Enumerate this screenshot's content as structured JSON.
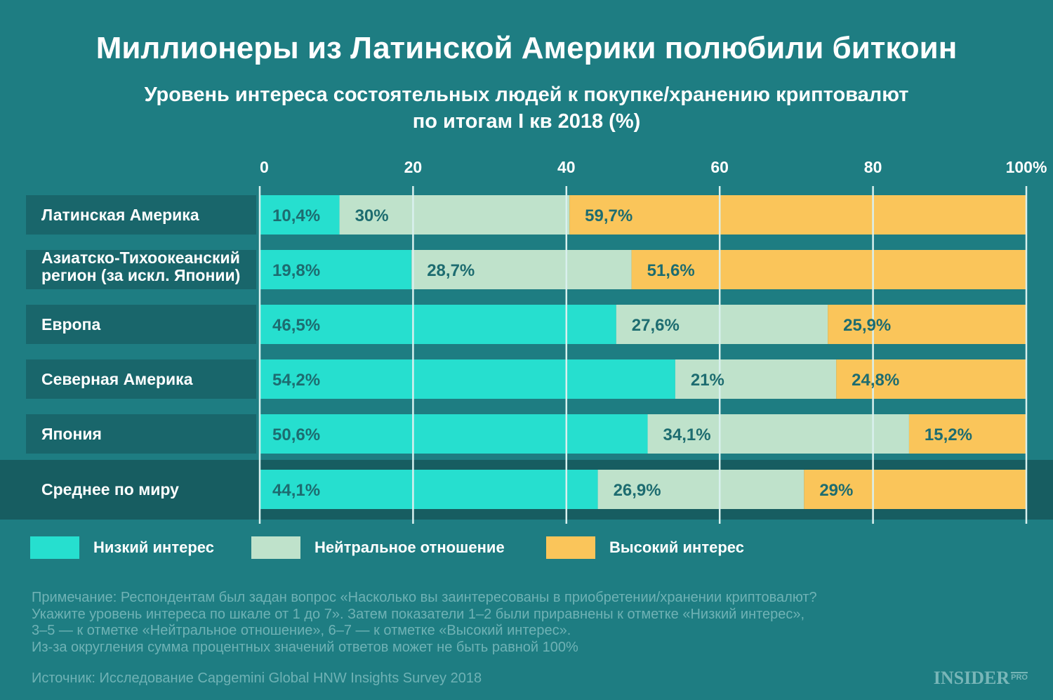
{
  "header": {
    "title": "Миллионеры из Латинской Америки полюбили биткоин",
    "subtitle_line1": "Уровень интереса состоятельных людей к покупке/хранению криптовалют",
    "subtitle_line2": "по итогам I кв 2018 (%)"
  },
  "chart_data": {
    "type": "bar",
    "orientation": "horizontal",
    "stacked": true,
    "title": "Миллионеры из Латинской Америки полюбили биткоин",
    "subtitle": "Уровень интереса состоятельных людей к покупке/хранению криптовалют по итогам I кв 2018 (%)",
    "x_ticks": [
      "0",
      "20",
      "40",
      "60",
      "80",
      "100%"
    ],
    "x_tick_values": [
      0,
      20,
      40,
      60,
      80,
      100
    ],
    "xlim": [
      0,
      100
    ],
    "grid": true,
    "legend_position": "bottom",
    "categories": [
      [
        "Латинская Америка"
      ],
      [
        "Азиатско-Тихоокеанский",
        "регион (за искл. Японии)"
      ],
      [
        "Европа"
      ],
      [
        "Северная Америка"
      ],
      [
        "Япония"
      ],
      [
        "Среднее по миру"
      ]
    ],
    "highlight_category_index": 5,
    "series": [
      {
        "name": "Низкий интерес",
        "color": "#26dfcf",
        "values": [
          10.4,
          19.8,
          46.5,
          54.2,
          50.6,
          44.1
        ],
        "labels": [
          "10,4%",
          "19,8%",
          "46,5%",
          "54,2%",
          "50,6%",
          "44,1%"
        ]
      },
      {
        "name": "Нейтральное отношение",
        "color": "#bfe2cb",
        "values": [
          30,
          28.7,
          27.6,
          21,
          34.1,
          26.9
        ],
        "labels": [
          "30%",
          "28,7%",
          "27,6%",
          "21%",
          "34,1%",
          "26,9%"
        ]
      },
      {
        "name": "Высокий интерес",
        "color": "#fac55a",
        "values": [
          59.7,
          51.6,
          25.9,
          24.8,
          15.2,
          29
        ],
        "labels": [
          "59,7%",
          "51,6%",
          "25,9%",
          "24,8%",
          "15,2%",
          "29%"
        ]
      }
    ]
  },
  "legend": {
    "items": [
      {
        "label": "Низкий интерес",
        "color": "#26dfcf"
      },
      {
        "label": "Нейтральное отношение",
        "color": "#bfe2cb"
      },
      {
        "label": "Высокий интерес",
        "color": "#fac55a"
      }
    ]
  },
  "footer": {
    "note_lines": [
      "Примечание: Респондентам был задан вопрос «Насколько вы заинтересованы в приобретении/хранении криптовалют?",
      "Укажите уровень интереса по шкале от 1 до 7». Затем показатели 1–2 были приравнены к отметке «Низкий интерес»,",
      "3–5 — к отметке «Нейтральное отношение», 6–7 — к отметке «Высокий интерес».",
      "Из-за округления сумма процентных значений ответов может не быть равной 100%"
    ],
    "source": "Источник: Исследование Capgemini Global HNW Insights Survey 2018",
    "brand": "INSIDER",
    "brand_sub": "PRO"
  },
  "colors": {
    "background": "#1e7d82",
    "label_box": "#19666b",
    "highlight_band": "#175d61",
    "grid_line": "#d9f0ee",
    "value_text": "#1d6c70"
  }
}
